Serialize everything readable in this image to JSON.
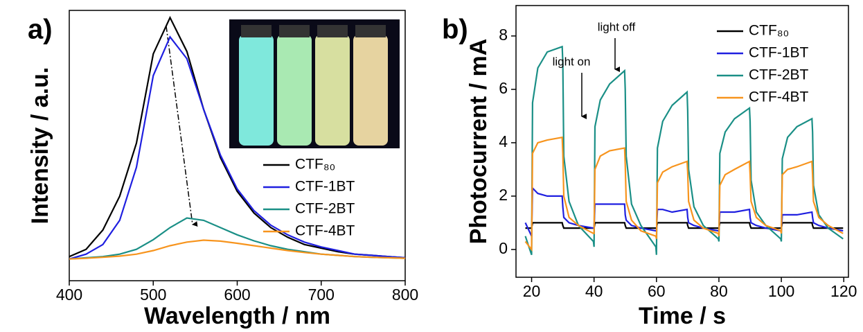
{
  "chart_data": [
    {
      "type": "line",
      "panel_label": "a)",
      "x_label": "Wavelength / nm",
      "y_label": "Intensity / a.u.",
      "x": [
        400,
        420,
        440,
        460,
        480,
        500,
        520,
        540,
        560,
        580,
        600,
        620,
        640,
        660,
        680,
        700,
        720,
        740,
        760,
        780,
        800
      ],
      "xlim": [
        400,
        800
      ],
      "xticks": [
        400,
        500,
        600,
        700,
        800
      ],
      "ylim": [
        -0.09,
        1.03
      ],
      "series": [
        {
          "name": "CTF₈₀",
          "color": "#000000",
          "values": [
            0.01,
            0.04,
            0.12,
            0.26,
            0.48,
            0.85,
            1.0,
            0.86,
            0.62,
            0.42,
            0.28,
            0.19,
            0.13,
            0.09,
            0.06,
            0.045,
            0.03,
            0.02,
            0.015,
            0.01,
            0.005
          ]
        },
        {
          "name": "CTF-1BT",
          "color": "#1f1fe0",
          "values": [
            0.0,
            0.02,
            0.06,
            0.16,
            0.38,
            0.76,
            0.92,
            0.83,
            0.62,
            0.43,
            0.29,
            0.2,
            0.14,
            0.1,
            0.07,
            0.05,
            0.035,
            0.02,
            0.015,
            0.01,
            0.005
          ]
        },
        {
          "name": "CTF-2BT",
          "color": "#1a8f86",
          "values": [
            0.0,
            0.005,
            0.01,
            0.02,
            0.04,
            0.08,
            0.13,
            0.17,
            0.16,
            0.13,
            0.1,
            0.075,
            0.055,
            0.04,
            0.03,
            0.02,
            0.015,
            0.01,
            0.007,
            0.005,
            0.003
          ]
        },
        {
          "name": "CTF-4BT",
          "color": "#f7941d",
          "values": [
            0.0,
            0.003,
            0.007,
            0.012,
            0.02,
            0.035,
            0.055,
            0.07,
            0.078,
            0.074,
            0.065,
            0.055,
            0.045,
            0.035,
            0.027,
            0.02,
            0.015,
            0.01,
            0.007,
            0.005,
            0.003
          ]
        }
      ]
    },
    {
      "type": "line",
      "panel_label": "b)",
      "x_label": "Time / s",
      "y_label": "Photocurrent / mA",
      "annotations": [
        "light on",
        "light off"
      ],
      "x": [
        18,
        20,
        20.3,
        22,
        25,
        29.8,
        30,
        30.3,
        32,
        35,
        39.8,
        40,
        40.3,
        42,
        45,
        49.8,
        50,
        50.3,
        52,
        55,
        59.8,
        60,
        60.3,
        62,
        65,
        69.8,
        70,
        70.3,
        72,
        75,
        79.8,
        80,
        80.3,
        82,
        85,
        89.8,
        90,
        90.3,
        92,
        95,
        99.8,
        100,
        100.3,
        102,
        105,
        109.8,
        110,
        110.3,
        112,
        115,
        119.8
      ],
      "xlim": [
        15,
        121.5
      ],
      "xticks": [
        20,
        40,
        60,
        80,
        100,
        120
      ],
      "ylim": [
        -1.04,
        9.14
      ],
      "yticks": [
        0,
        2,
        4,
        6,
        8
      ],
      "series": [
        {
          "name": "CTF₈₀",
          "color": "#000000",
          "values": [
            0.8,
            0.8,
            1.0,
            1.0,
            1.0,
            1.0,
            0.9,
            0.8,
            0.8,
            0.8,
            0.8,
            0.8,
            1.0,
            1.0,
            1.0,
            1.0,
            0.9,
            0.8,
            0.8,
            0.8,
            0.8,
            0.8,
            1.0,
            1.0,
            1.0,
            1.0,
            0.9,
            0.8,
            0.8,
            0.8,
            0.8,
            0.8,
            1.0,
            1.0,
            1.0,
            1.0,
            0.9,
            0.8,
            0.8,
            0.8,
            0.8,
            0.8,
            1.0,
            1.0,
            1.0,
            1.0,
            0.9,
            0.8,
            0.8,
            0.8,
            0.8
          ]
        },
        {
          "name": "CTF-1BT",
          "color": "#1f1fe0",
          "values": [
            1.0,
            0.5,
            2.3,
            2.1,
            2.0,
            2.0,
            1.6,
            1.2,
            1.0,
            0.9,
            0.8,
            0.8,
            1.7,
            1.7,
            1.7,
            1.7,
            1.3,
            1.1,
            0.9,
            0.8,
            0.7,
            0.7,
            1.5,
            1.5,
            1.4,
            1.5,
            1.2,
            1.0,
            0.9,
            0.8,
            0.7,
            0.7,
            1.4,
            1.4,
            1.4,
            1.5,
            1.2,
            1.0,
            0.9,
            0.8,
            0.7,
            0.7,
            1.3,
            1.3,
            1.3,
            1.4,
            1.2,
            1.0,
            0.9,
            0.8,
            0.7
          ]
        },
        {
          "name": "CTF-2BT",
          "color": "#1a8f86",
          "values": [
            0.5,
            -0.2,
            5.5,
            6.8,
            7.4,
            7.6,
            7.0,
            3.5,
            1.8,
            0.9,
            0.3,
            0.1,
            4.6,
            5.6,
            6.2,
            6.7,
            6.0,
            3.5,
            1.7,
            0.9,
            0.1,
            -0.2,
            3.8,
            4.8,
            5.4,
            5.9,
            5.2,
            3.0,
            1.6,
            0.9,
            0.4,
            0.3,
            3.6,
            4.4,
            4.9,
            5.3,
            4.8,
            2.6,
            1.4,
            0.9,
            0.4,
            0.3,
            3.4,
            4.2,
            4.6,
            4.9,
            4.4,
            2.4,
            1.3,
            0.8,
            0.4
          ]
        },
        {
          "name": "CTF-4BT",
          "color": "#f7941d",
          "values": [
            0.3,
            0.0,
            3.6,
            4.0,
            4.1,
            4.2,
            3.6,
            2.0,
            1.2,
            0.9,
            0.6,
            0.6,
            3.0,
            3.5,
            3.7,
            3.8,
            3.2,
            1.8,
            1.1,
            0.7,
            0.5,
            0.4,
            2.5,
            2.9,
            3.1,
            3.3,
            2.9,
            1.8,
            1.1,
            0.8,
            0.6,
            0.5,
            2.4,
            2.8,
            3.0,
            3.3,
            2.8,
            1.8,
            1.2,
            0.9,
            0.7,
            0.6,
            2.8,
            3.0,
            3.1,
            3.3,
            2.8,
            1.8,
            1.2,
            0.9,
            0.6
          ]
        }
      ]
    }
  ]
}
